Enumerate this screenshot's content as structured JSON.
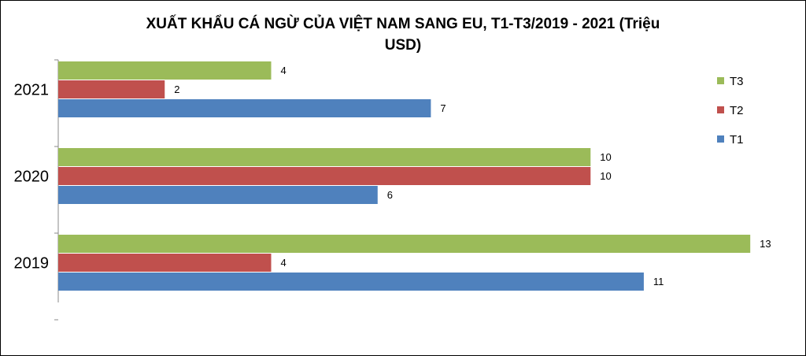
{
  "chart_data": {
    "type": "bar",
    "orientation": "horizontal",
    "title_lines": [
      "XUẤT KHẨU CÁ NGỪ CỦA VIỆT NAM SANG EU, T1-T3/2019  - 2021 (Triệu",
      "USD)"
    ],
    "categories": [
      "2021",
      "2020",
      "2019"
    ],
    "series": [
      {
        "name": "T3",
        "color": "#9bbb59",
        "values": [
          4,
          10,
          13
        ]
      },
      {
        "name": "T2",
        "color": "#c0504d",
        "values": [
          2,
          10,
          4
        ]
      },
      {
        "name": "T1",
        "color": "#4f81bd",
        "values": [
          7,
          6,
          11
        ]
      }
    ],
    "xlim": [
      0,
      13.5
    ],
    "grid": false,
    "legend": "right",
    "data_labels": true
  }
}
